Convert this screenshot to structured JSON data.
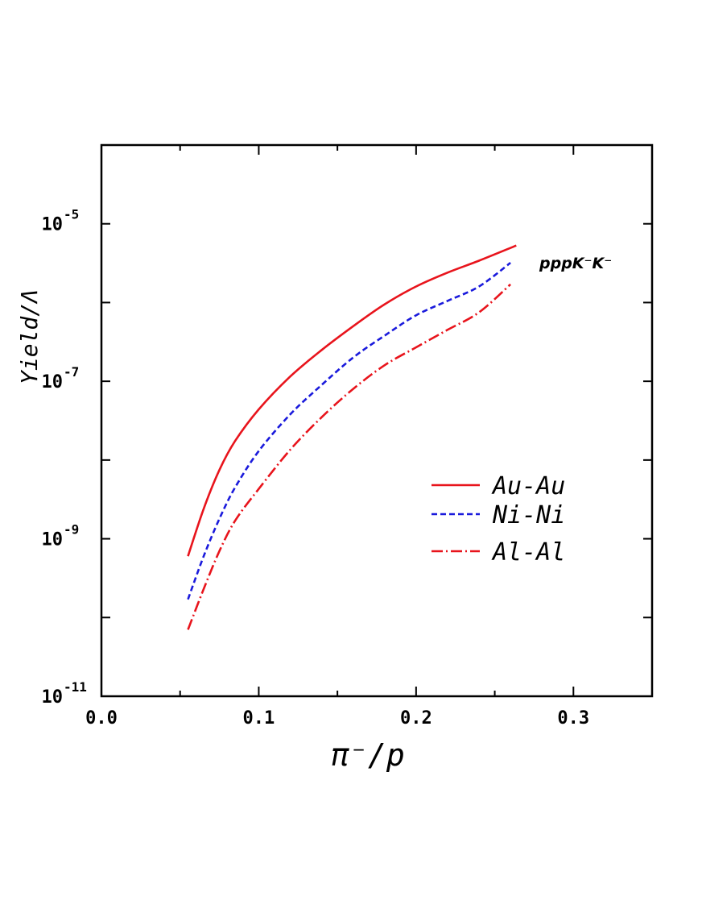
{
  "chart_data": {
    "type": "line",
    "title": "",
    "xlabel": "π⁻/p",
    "ylabel": "Yield/Λ",
    "xlim": [
      0.0,
      0.35
    ],
    "ylim": [
      1e-11,
      0.0001
    ],
    "yscale": "log",
    "x_ticks": [
      0.0,
      0.1,
      0.2,
      0.3
    ],
    "x_tick_labels": [
      "0.0",
      "0.1",
      "0.2",
      "0.3"
    ],
    "y_ticks": [
      1e-11,
      1e-09,
      1e-07,
      1e-05
    ],
    "y_tick_labels": [
      {
        "base": "10",
        "exp": "-11"
      },
      {
        "base": "10",
        "exp": "-9"
      },
      {
        "base": "10",
        "exp": "-7"
      },
      {
        "base": "10",
        "exp": "-5"
      }
    ],
    "annotation": "pppK⁻K⁻",
    "legend_position": "right",
    "grid": false,
    "series": [
      {
        "name": "Au-Au",
        "color": "#e8141c",
        "style": "solid",
        "x": [
          0.055,
          0.065,
          0.075,
          0.085,
          0.1,
          0.12,
          0.14,
          0.16,
          0.18,
          0.2,
          0.22,
          0.24,
          0.2637
        ],
        "y": [
          6e-10,
          2.4e-09,
          7.5e-09,
          1.75e-08,
          4.4e-08,
          1.15e-07,
          2.5e-07,
          5e-07,
          9.5e-07,
          1.6e-06,
          2.4e-06,
          3.4e-06,
          5.3e-06
        ]
      },
      {
        "name": "Ni-Ni",
        "color": "#1a1adc",
        "style": "dashed",
        "x": [
          0.055,
          0.065,
          0.075,
          0.085,
          0.1,
          0.12,
          0.14,
          0.16,
          0.18,
          0.2,
          0.22,
          0.24,
          0.26
        ],
        "y": [
          1.7e-10,
          6e-10,
          1.8e-09,
          4.5e-09,
          1.3e-08,
          3.8e-08,
          9e-08,
          2e-07,
          3.8e-07,
          6.9e-07,
          1.05e-06,
          1.6e-06,
          3.2e-06
        ]
      },
      {
        "name": "Al-Al",
        "color": "#e8141c",
        "style": "dashdot",
        "x": [
          0.055,
          0.065,
          0.075,
          0.085,
          0.1,
          0.12,
          0.14,
          0.16,
          0.18,
          0.2,
          0.22,
          0.24,
          0.26
        ],
        "y": [
          7e-11,
          2.3e-10,
          7e-10,
          1.7e-09,
          4.3e-09,
          1.35e-08,
          3.5e-08,
          8e-08,
          1.6e-07,
          2.7e-07,
          4.5e-07,
          7.5e-07,
          1.7e-06
        ]
      }
    ]
  }
}
